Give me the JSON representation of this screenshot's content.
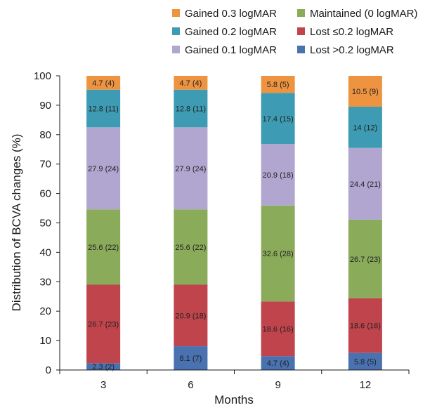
{
  "chart_data": {
    "type": "bar",
    "stacked": true,
    "categories": [
      "3",
      "6",
      "9",
      "12"
    ],
    "xlabel": "Months",
    "ylabel": "Distribution of BCVA changes (%)",
    "ylim": [
      0,
      100
    ],
    "yticks": [
      "0",
      "10",
      "20",
      "30",
      "40",
      "50",
      "60",
      "70",
      "80",
      "90",
      "100"
    ],
    "grid": false,
    "legend_position": "top-right",
    "series": [
      {
        "name": "Lost >0.2 logMAR",
        "color": "#4a72b0",
        "values": [
          2.3,
          8.1,
          4.7,
          5.8
        ],
        "labels": [
          "2.3 (2)",
          "8.1 (7)",
          "4.7 (4)",
          "5.8 (5)"
        ]
      },
      {
        "name": "Lost ≤0.2 logMAR",
        "color": "#c0444c",
        "values": [
          26.7,
          20.9,
          18.6,
          18.6
        ],
        "labels": [
          "26.7 (23)",
          "20.9 (18)",
          "18.6 (16)",
          "18.6 (16)"
        ]
      },
      {
        "name": "Maintained (0 logMAR)",
        "color": "#8aab5a",
        "values": [
          25.6,
          25.6,
          32.6,
          26.7
        ],
        "labels": [
          "25.6 (22)",
          "25.6 (22)",
          "32.6 (28)",
          "26.7 (23)"
        ]
      },
      {
        "name": "Gained 0.1 logMAR",
        "color": "#b1a6cf",
        "values": [
          27.9,
          27.9,
          20.9,
          24.4
        ],
        "labels": [
          "27.9 (24)",
          "27.9 (24)",
          "20.9 (18)",
          "24.4 (21)"
        ]
      },
      {
        "name": "Gained 0.2 logMAR",
        "color": "#3d9cb3",
        "values": [
          12.8,
          12.8,
          17.4,
          14
        ],
        "labels": [
          "12.8 (11)",
          "12.8 (11)",
          "17.4 (15)",
          "14 (12)"
        ]
      },
      {
        "name": "Gained 0.3 logMAR",
        "color": "#ee9440",
        "values": [
          4.7,
          4.7,
          5.8,
          10.5
        ],
        "labels": [
          "4.7 (4)",
          "4.7 (4)",
          "5.8 (5)",
          "10.5 (9)"
        ]
      }
    ],
    "legend_order": [
      5,
      2,
      4,
      1,
      3,
      0
    ]
  }
}
